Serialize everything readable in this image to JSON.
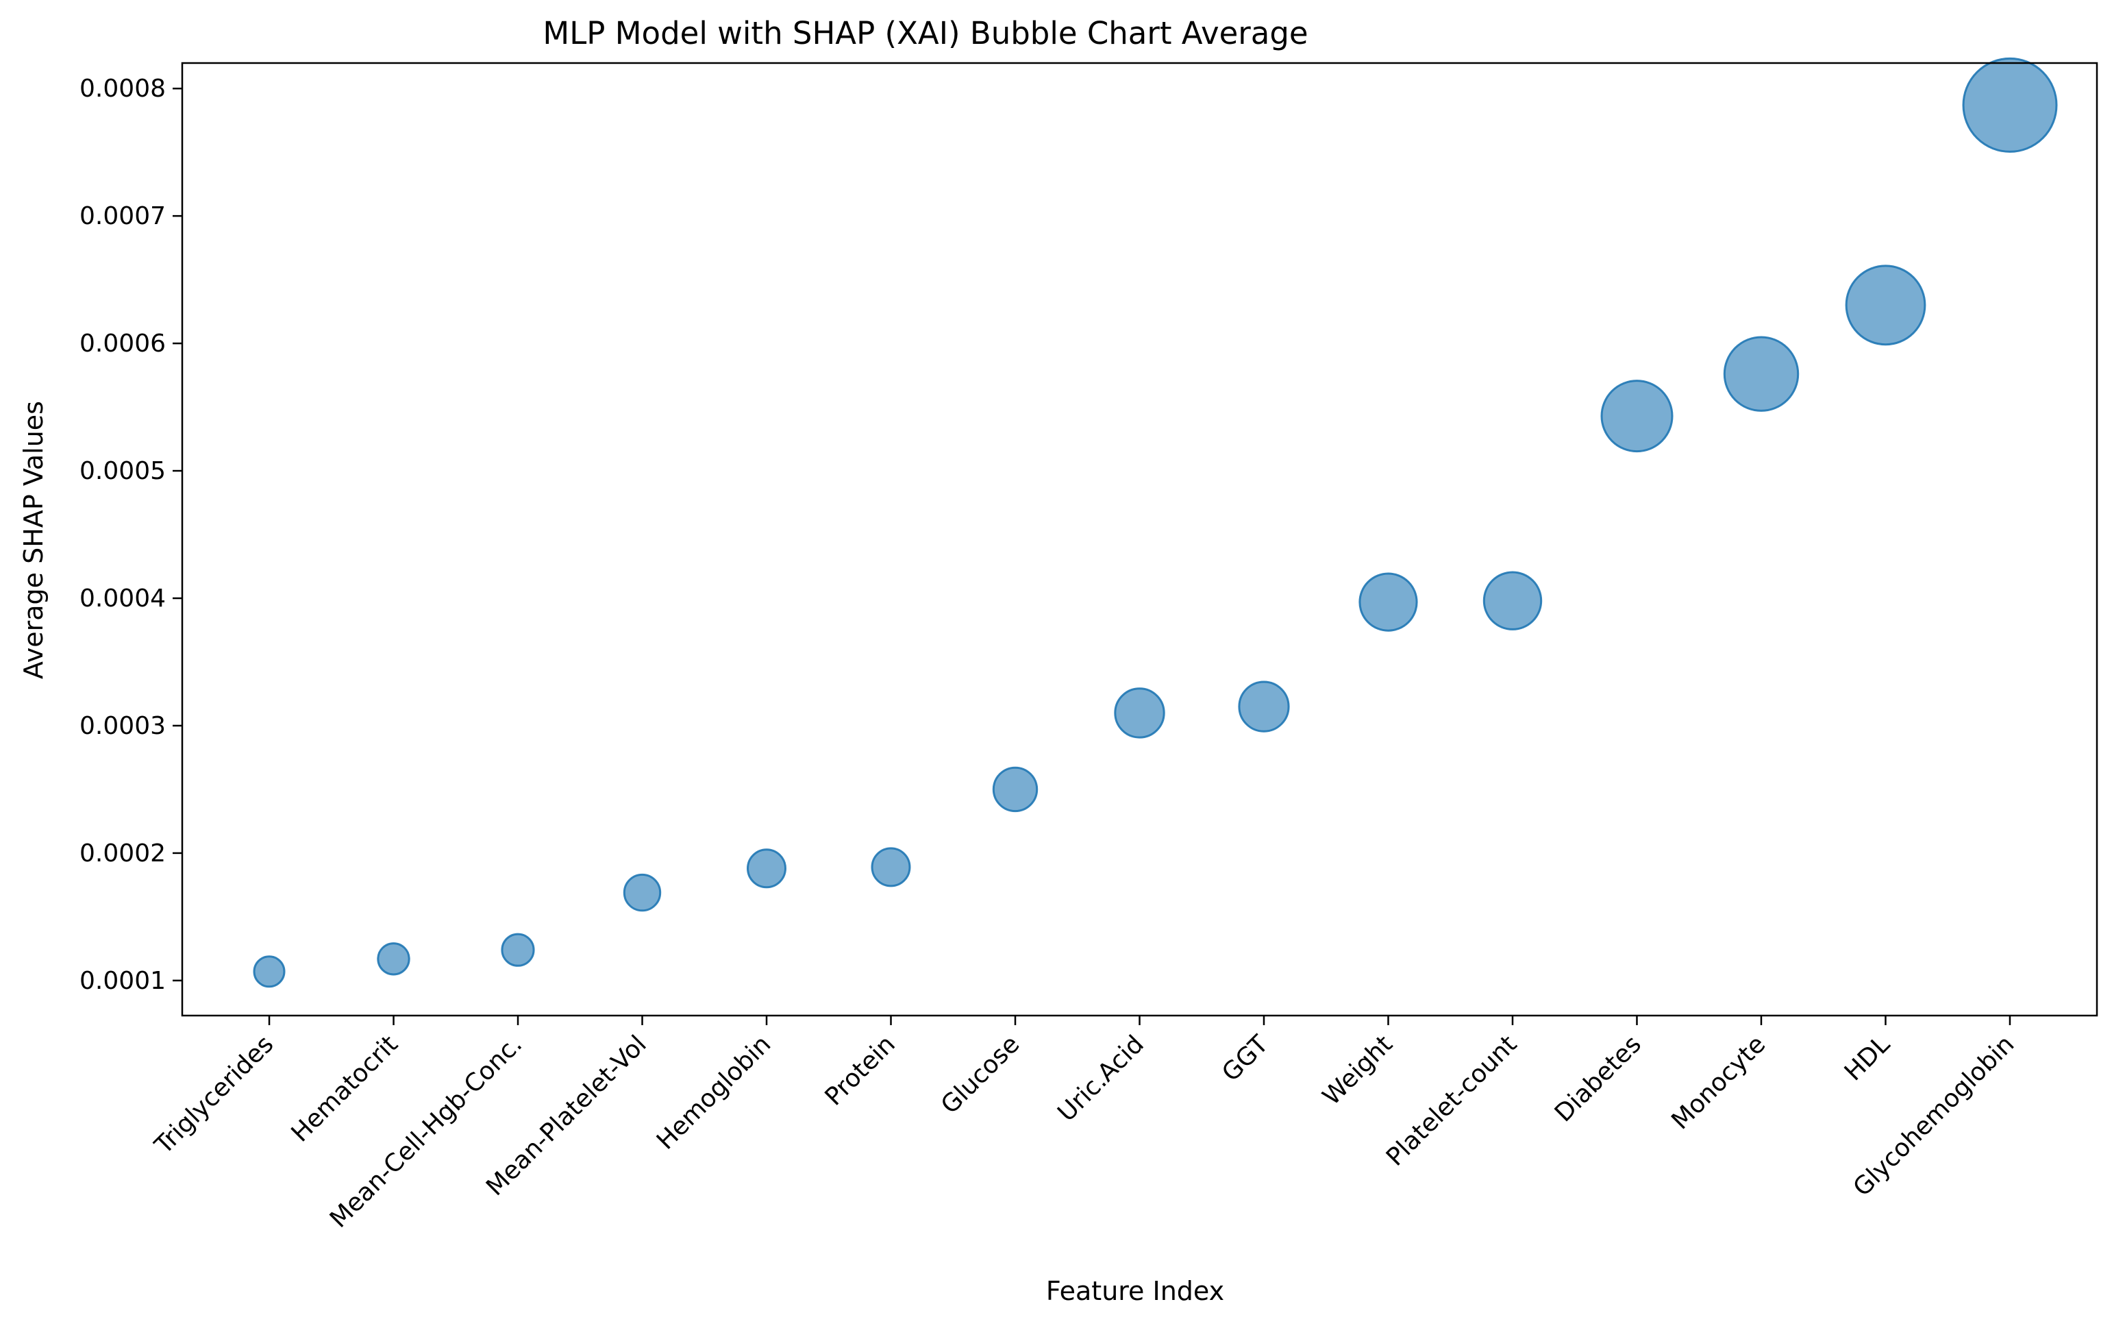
{
  "chart_data": {
    "type": "scatter",
    "title": "MLP Model with SHAP (XAI) Bubble Chart Average",
    "xlabel": "Feature Index",
    "ylabel": "Average SHAP Values",
    "categories": [
      "Triglycerides",
      "Hematocrit",
      "Mean-Cell-Hgb-Conc.",
      "Mean-Platelet-Vol",
      "Hemoglobin",
      "Protein",
      "Glucose",
      "Uric.Acid",
      "GGT",
      "Weight",
      "Platelet-count",
      "Diabetes",
      "Monocyte",
      "HDL",
      "Glycohemoglobin"
    ],
    "values": [
      0.000107,
      0.000117,
      0.000124,
      0.000169,
      0.000188,
      0.000189,
      0.00025,
      0.00031,
      0.000315,
      0.000397,
      0.000398,
      0.000543,
      0.000576,
      0.00063,
      0.000787
    ],
    "bubble_size_encodes": "value",
    "ylim": [
      7.25e-05,
      0.00082
    ],
    "yticks": [
      0.0001,
      0.0002,
      0.0003,
      0.0004,
      0.0005,
      0.0006,
      0.0007,
      0.0008
    ],
    "ytick_labels": [
      "0.0001",
      "0.0002",
      "0.0003",
      "0.0004",
      "0.0005",
      "0.0006",
      "0.0007",
      "0.0008"
    ],
    "grid": false,
    "legend": "none",
    "colors": {
      "bubble_fill": "#1f77b4",
      "axis": "#000000"
    }
  }
}
